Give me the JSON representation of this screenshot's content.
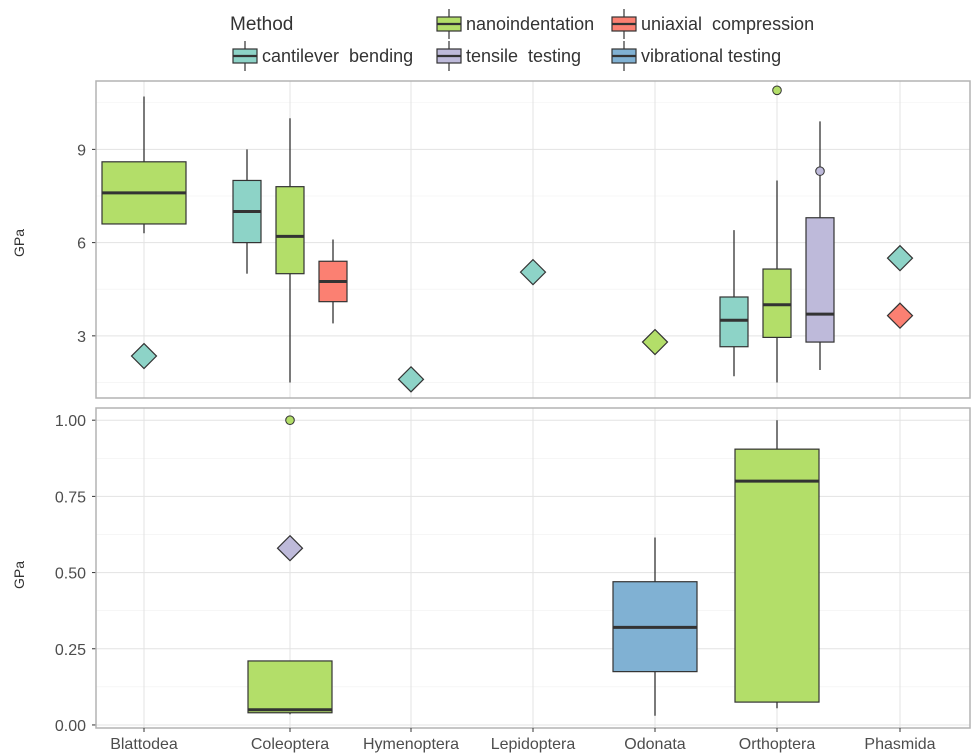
{
  "legend": {
    "title": "Method",
    "items": [
      {
        "key": "nanoindentation",
        "label": "nanoindentation",
        "color": "#b3de69"
      },
      {
        "key": "uniaxial",
        "label": "uniaxial  compression",
        "color": "#fb8072"
      },
      {
        "key": "cantilever",
        "label": "cantilever  bending",
        "color": "#8dd3c7"
      },
      {
        "key": "tensile",
        "label": "tensile  testing",
        "color": "#bebada"
      },
      {
        "key": "vibrational",
        "label": "vibrational testing",
        "color": "#80b1d3"
      }
    ]
  },
  "chart_data": [
    {
      "type": "box",
      "panel": "top",
      "ylabel": "GPa",
      "ylim": [
        1.0,
        11.2
      ],
      "yticks": [
        3,
        6,
        9
      ],
      "categories": [
        "Blattodea",
        "Coleoptera",
        "Hymenoptera",
        "Lepidoptera",
        "Odonata",
        "Orthoptera",
        "Phasmida"
      ],
      "boxes": [
        {
          "category": "Blattodea",
          "method": "nanoindentation",
          "min": 6.3,
          "q1": 6.6,
          "median": 7.6,
          "q3": 8.6,
          "max": 10.7,
          "outliers": []
        },
        {
          "category": "Coleoptera",
          "method": "cantilever",
          "min": 5.0,
          "q1": 6.0,
          "median": 7.0,
          "q3": 8.0,
          "max": 9.0,
          "outliers": []
        },
        {
          "category": "Coleoptera",
          "method": "nanoindentation",
          "min": 1.5,
          "q1": 5.0,
          "median": 6.2,
          "q3": 7.8,
          "max": 10.0,
          "outliers": []
        },
        {
          "category": "Coleoptera",
          "method": "uniaxial",
          "min": 3.4,
          "q1": 4.1,
          "median": 4.75,
          "q3": 5.4,
          "max": 6.1,
          "outliers": []
        },
        {
          "category": "Orthoptera",
          "method": "cantilever",
          "min": 1.7,
          "q1": 2.65,
          "median": 3.5,
          "q3": 4.25,
          "max": 6.4,
          "outliers": []
        },
        {
          "category": "Orthoptera",
          "method": "nanoindentation",
          "min": 1.5,
          "q1": 2.95,
          "median": 4.0,
          "q3": 5.15,
          "max": 8.0,
          "outliers": [
            10.9
          ]
        },
        {
          "category": "Orthoptera",
          "method": "tensile",
          "min": 1.9,
          "q1": 2.8,
          "median": 3.7,
          "q3": 6.8,
          "max": 9.9,
          "outliers": [
            8.3
          ]
        }
      ],
      "points": [
        {
          "category": "Blattodea",
          "method": "cantilever",
          "value": 2.35
        },
        {
          "category": "Hymenoptera",
          "method": "cantilever",
          "value": 1.6
        },
        {
          "category": "Lepidoptera",
          "method": "cantilever",
          "value": 5.05
        },
        {
          "category": "Odonata",
          "method": "nanoindentation",
          "value": 2.8
        },
        {
          "category": "Phasmida",
          "method": "cantilever",
          "value": 5.5
        },
        {
          "category": "Phasmida",
          "method": "uniaxial",
          "value": 3.65
        }
      ]
    },
    {
      "type": "box",
      "panel": "bottom",
      "ylabel": "GPa",
      "ylim": [
        -0.01,
        1.04
      ],
      "yticks": [
        "0.00",
        "0.25",
        "0.50",
        "0.75",
        "1.00"
      ],
      "categories": [
        "Blattodea",
        "Coleoptera",
        "Hymenoptera",
        "Lepidoptera",
        "Odonata",
        "Orthoptera",
        "Phasmida"
      ],
      "boxes": [
        {
          "category": "Coleoptera",
          "method": "nanoindentation",
          "min": 0.035,
          "q1": 0.04,
          "median": 0.05,
          "q3": 0.21,
          "max": 0.21,
          "outliers": [
            1.0
          ]
        },
        {
          "category": "Odonata",
          "method": "vibrational",
          "min": 0.03,
          "q1": 0.175,
          "median": 0.32,
          "q3": 0.47,
          "max": 0.615,
          "outliers": []
        },
        {
          "category": "Orthoptera",
          "method": "nanoindentation",
          "min": 0.055,
          "q1": 0.075,
          "median": 0.8,
          "q3": 0.905,
          "max": 1.0,
          "outliers": []
        }
      ],
      "points": [
        {
          "category": "Coleoptera",
          "method": "tensile",
          "value": 0.58
        }
      ]
    }
  ]
}
